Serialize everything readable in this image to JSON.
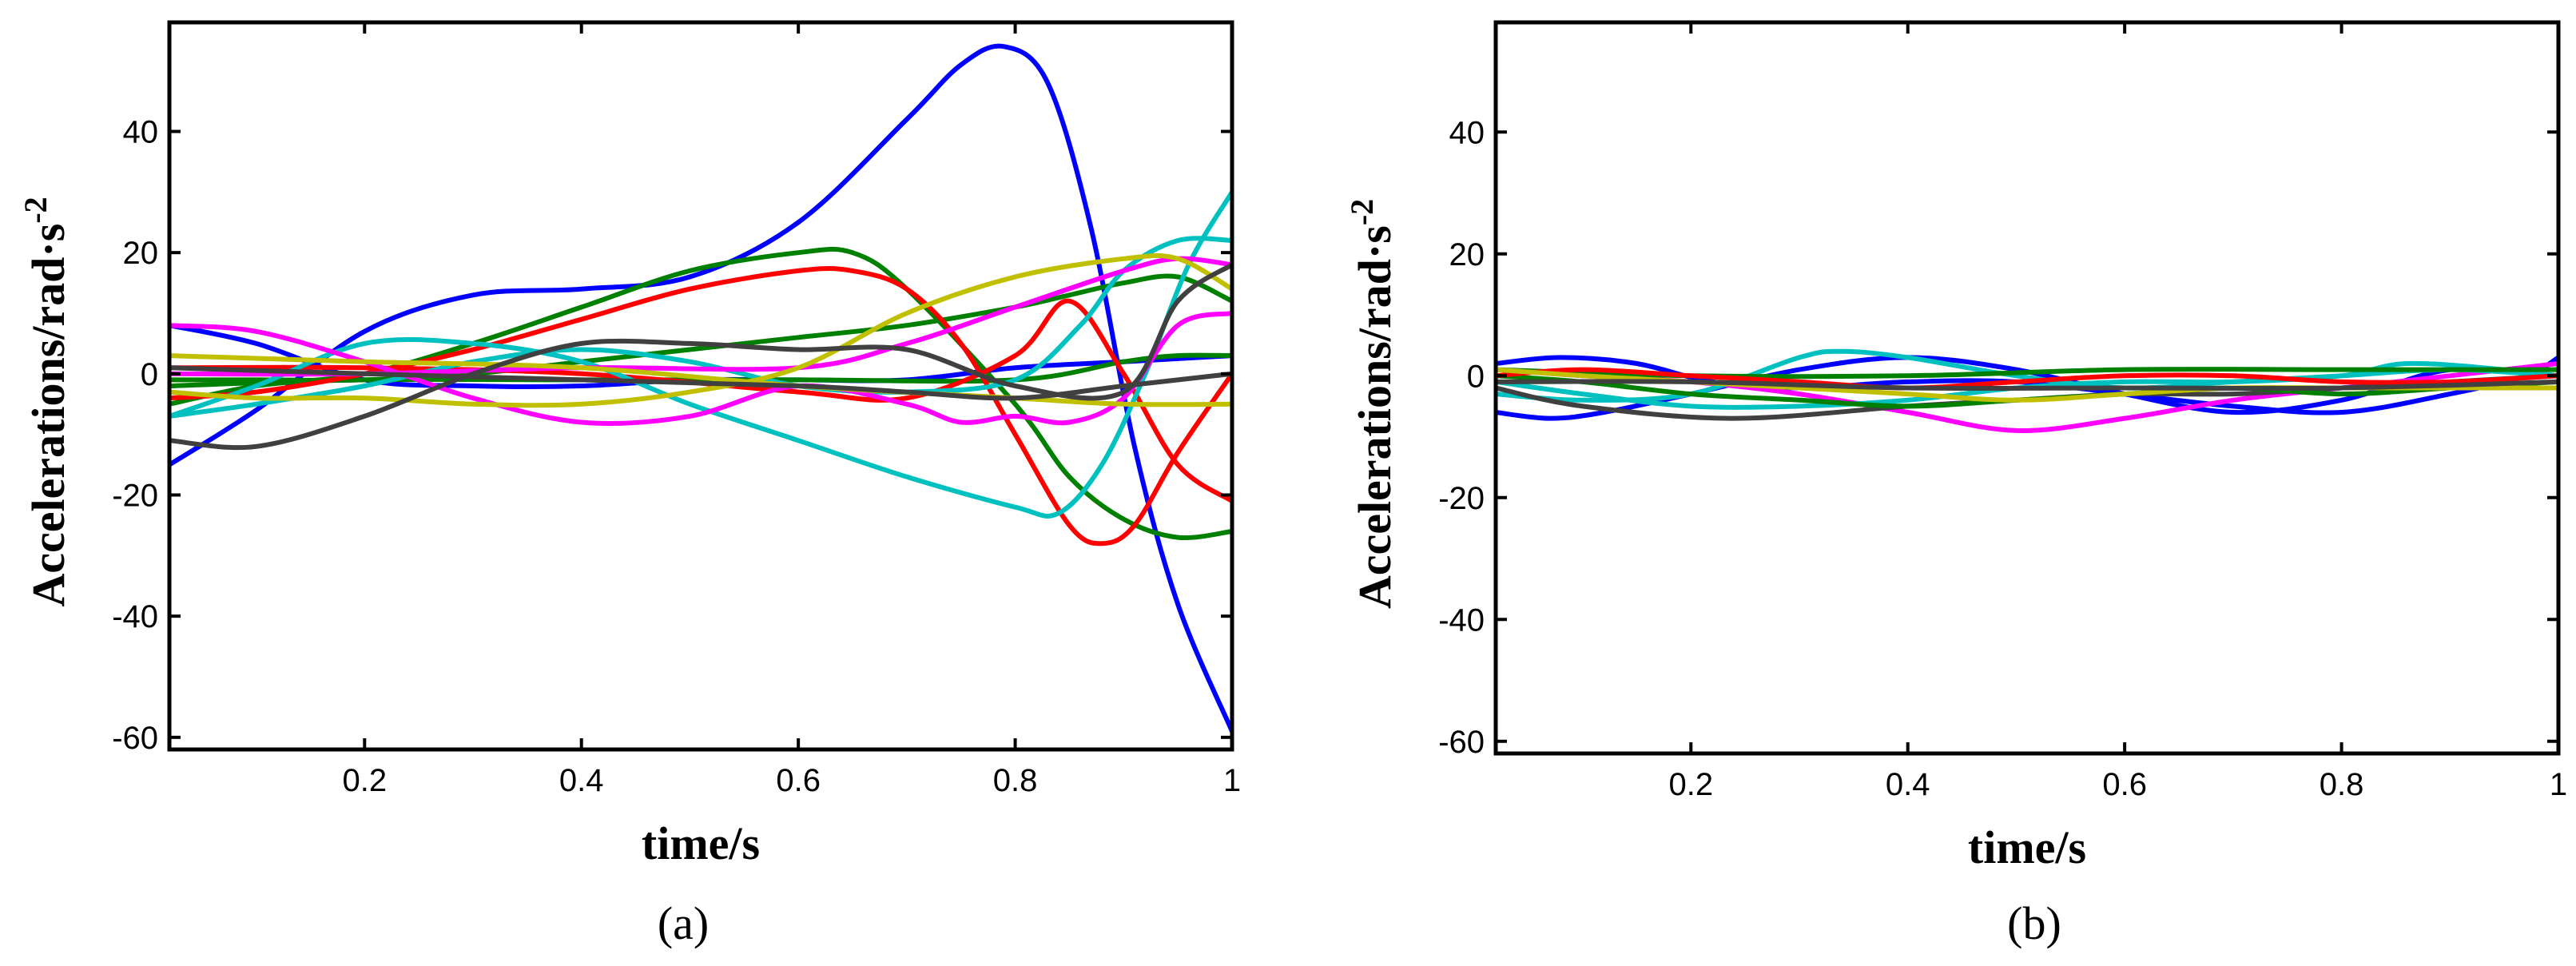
{
  "chart_data": [
    {
      "type": "line",
      "caption": "(a)",
      "xlabel": "time/s",
      "ylabel": "Accelerations/rad·s",
      "ylabel_superscript": "-2",
      "xlim": [
        0.02,
        1.0
      ],
      "ylim": [
        -62,
        58
      ],
      "xticks": [
        0.2,
        0.4,
        0.6,
        0.8,
        1.0
      ],
      "xtick_labels": [
        "0.2",
        "0.4",
        "0.6",
        "0.8",
        "1"
      ],
      "yticks": [
        -60,
        -40,
        -20,
        0,
        20,
        40
      ],
      "ytick_labels": [
        "-60",
        "-40",
        "-20",
        "0",
        "20",
        "40"
      ],
      "series": [
        {
          "name": "blue-1",
          "color": "#0000ff",
          "x": [
            0.02,
            0.1,
            0.2,
            0.3,
            0.4,
            0.5,
            0.6,
            0.7,
            0.75,
            0.79,
            0.83,
            0.87,
            0.91,
            0.95,
            1.0
          ],
          "y": [
            -15,
            -6,
            7,
            13,
            14,
            16,
            25,
            42,
            51,
            54,
            48,
            24,
            -12,
            -38,
            -59
          ]
        },
        {
          "name": "blue-2",
          "color": "#0000ff",
          "x": [
            0.02,
            0.1,
            0.2,
            0.3,
            0.4,
            0.5,
            0.6,
            0.7,
            0.8,
            0.9,
            1.0
          ],
          "y": [
            8,
            5,
            -1,
            -2,
            -2,
            -1,
            -1,
            -1,
            1,
            2,
            3
          ]
        },
        {
          "name": "green-1",
          "color": "#008000",
          "x": [
            0.02,
            0.1,
            0.2,
            0.3,
            0.4,
            0.5,
            0.6,
            0.65,
            0.7,
            0.8,
            0.85,
            0.9,
            0.95,
            1.0
          ],
          "y": [
            -5,
            -2,
            0,
            5,
            11,
            17,
            20,
            20,
            14,
            -5,
            -17,
            -24,
            -27,
            -26
          ]
        },
        {
          "name": "green-2",
          "color": "#008000",
          "x": [
            0.02,
            0.2,
            0.4,
            0.6,
            0.8,
            0.9,
            0.95,
            1.0
          ],
          "y": [
            -2,
            -1,
            -1,
            -1,
            -1,
            2,
            3,
            3
          ]
        },
        {
          "name": "green-3",
          "color": "#008000",
          "x": [
            0.02,
            0.1,
            0.2,
            0.3,
            0.4,
            0.5,
            0.6,
            0.7,
            0.8,
            0.85,
            0.9,
            0.95,
            1.0
          ],
          "y": [
            -1,
            -1,
            -1,
            0,
            2,
            4,
            6,
            8,
            11,
            13,
            15,
            16,
            12
          ]
        },
        {
          "name": "red-1",
          "color": "#ff0000",
          "x": [
            0.02,
            0.1,
            0.2,
            0.3,
            0.4,
            0.5,
            0.6,
            0.65,
            0.7,
            0.75,
            0.8,
            0.85,
            0.88,
            0.91,
            0.95,
            1.0
          ],
          "y": [
            -4,
            -3,
            0,
            4,
            9,
            14,
            17,
            17,
            14,
            5,
            -10,
            -25,
            -28,
            -25,
            -13,
            0
          ]
        },
        {
          "name": "red-2",
          "color": "#ff0000",
          "x": [
            0.02,
            0.2,
            0.4,
            0.6,
            0.7,
            0.8,
            0.85,
            0.9,
            0.95,
            1.0
          ],
          "y": [
            1,
            1,
            0,
            -3,
            -4,
            3,
            12,
            0,
            -15,
            -21
          ]
        },
        {
          "name": "cyan-1",
          "color": "#00c0c0",
          "x": [
            0.02,
            0.1,
            0.2,
            0.3,
            0.4,
            0.5,
            0.6,
            0.7,
            0.8,
            0.84,
            0.88,
            0.92,
            0.96,
            1.0
          ],
          "y": [
            -7,
            -2,
            5,
            5,
            2,
            -5,
            -11,
            -17,
            -22,
            -23,
            -15,
            0,
            18,
            30
          ]
        },
        {
          "name": "cyan-2",
          "color": "#00c0c0",
          "x": [
            0.02,
            0.1,
            0.2,
            0.3,
            0.4,
            0.5,
            0.6,
            0.7,
            0.8,
            0.86,
            0.9,
            0.95,
            1.0
          ],
          "y": [
            -7,
            -5,
            -2,
            2,
            4,
            2,
            -2,
            -3,
            -1,
            8,
            17,
            22,
            22
          ]
        },
        {
          "name": "magenta",
          "color": "#ff00ff",
          "x": [
            0.02,
            0.1,
            0.2,
            0.3,
            0.4,
            0.5,
            0.6,
            0.7,
            0.75,
            0.8,
            0.85,
            0.9,
            0.95,
            1.0
          ],
          "y": [
            8,
            7,
            2,
            -4,
            -8,
            -7,
            -2,
            -5,
            -8,
            -7,
            -8,
            -4,
            8,
            10
          ]
        },
        {
          "name": "magenta-2",
          "color": "#ff00ff",
          "x": [
            0.02,
            0.2,
            0.4,
            0.6,
            0.7,
            0.8,
            0.9,
            0.95,
            1.0
          ],
          "y": [
            0,
            0,
            1,
            1,
            5,
            11,
            17,
            19,
            18
          ]
        },
        {
          "name": "yellow-1",
          "color": "#c0c000",
          "x": [
            0.02,
            0.1,
            0.2,
            0.3,
            0.4,
            0.5,
            0.6,
            0.7,
            0.8,
            0.9,
            0.95,
            1.0
          ],
          "y": [
            -3,
            -4,
            -4,
            -5,
            -5,
            -3,
            1,
            10,
            16,
            19,
            19,
            14
          ]
        },
        {
          "name": "yellow-2",
          "color": "#c0c000",
          "x": [
            0.02,
            0.2,
            0.4,
            0.6,
            0.8,
            0.9,
            1.0
          ],
          "y": [
            3,
            2,
            1,
            -2,
            -4,
            -5,
            -5
          ]
        },
        {
          "name": "dark-gray",
          "color": "#404040",
          "x": [
            0.02,
            0.1,
            0.2,
            0.3,
            0.4,
            0.5,
            0.6,
            0.7,
            0.8,
            0.9,
            0.95,
            1.0
          ],
          "y": [
            -11,
            -12,
            -7,
            0,
            5,
            5,
            4,
            4,
            -2,
            -3,
            12,
            18
          ]
        },
        {
          "name": "dark-gray-2",
          "color": "#404040",
          "x": [
            0.02,
            0.2,
            0.4,
            0.6,
            0.7,
            0.8,
            0.9,
            1.0
          ],
          "y": [
            1,
            0,
            -1,
            -2,
            -3,
            -4,
            -2,
            0
          ]
        }
      ]
    },
    {
      "type": "line",
      "caption": "(b)",
      "xlabel": "time/s",
      "ylabel": "Accelerations/rad·s",
      "ylabel_superscript": "-2",
      "xlim": [
        0.02,
        1.0
      ],
      "ylim": [
        -62,
        58
      ],
      "xticks": [
        0.2,
        0.4,
        0.6,
        0.8,
        1.0
      ],
      "xtick_labels": [
        "0.2",
        "0.4",
        "0.6",
        "0.8",
        "1"
      ],
      "yticks": [
        -60,
        -40,
        -20,
        0,
        20,
        40
      ],
      "ytick_labels": [
        "-60",
        "-40",
        "-20",
        "0",
        "20",
        "40"
      ],
      "series": [
        {
          "name": "blue-1",
          "color": "#0000ff",
          "x": [
            0.02,
            0.08,
            0.15,
            0.22,
            0.3,
            0.4,
            0.5,
            0.6,
            0.7,
            0.8,
            0.9,
            0.97,
            1.0
          ],
          "y": [
            2,
            3,
            2,
            -1,
            -2,
            -1,
            -1,
            -3,
            -5,
            -6,
            -3,
            0,
            3
          ]
        },
        {
          "name": "blue-2",
          "color": "#0000ff",
          "x": [
            0.02,
            0.07,
            0.12,
            0.2,
            0.3,
            0.4,
            0.5,
            0.6,
            0.7,
            0.8,
            0.9,
            1.0
          ],
          "y": [
            -6,
            -7,
            -6,
            -3,
            1,
            3,
            1,
            -3,
            -6,
            -4,
            1,
            0
          ]
        },
        {
          "name": "magenta",
          "color": "#ff00ff",
          "x": [
            0.02,
            0.1,
            0.2,
            0.3,
            0.4,
            0.5,
            0.6,
            0.7,
            0.8,
            0.9,
            1.0
          ],
          "y": [
            1,
            0,
            -1,
            -3,
            -6,
            -9,
            -7,
            -4,
            -2,
            0,
            2
          ]
        },
        {
          "name": "cyan-1",
          "color": "#00c0c0",
          "x": [
            0.02,
            0.1,
            0.2,
            0.3,
            0.34,
            0.4,
            0.5,
            0.6,
            0.7,
            0.8,
            0.9,
            1.0
          ],
          "y": [
            -3,
            -4,
            -3,
            3,
            4,
            3,
            0,
            -2,
            -1,
            0,
            1,
            0
          ]
        },
        {
          "name": "cyan-2",
          "color": "#00c0c0",
          "x": [
            0.02,
            0.1,
            0.2,
            0.3,
            0.4,
            0.5,
            0.6,
            0.7,
            0.8,
            0.86,
            0.95,
            1.0
          ],
          "y": [
            -1,
            -3,
            -5,
            -5,
            -4,
            -2,
            -1,
            -1,
            0,
            2,
            1,
            0
          ]
        },
        {
          "name": "dark-gray",
          "color": "#404040",
          "x": [
            0.02,
            0.1,
            0.24,
            0.4,
            0.5,
            0.6,
            0.7,
            0.8,
            0.9,
            1.0
          ],
          "y": [
            -2,
            -5,
            -7,
            -5,
            -4,
            -3,
            -3,
            -2,
            -1,
            0
          ]
        },
        {
          "name": "green-1",
          "color": "#008000",
          "x": [
            0.02,
            0.1,
            0.2,
            0.3,
            0.4,
            0.5,
            0.6,
            0.7,
            0.8,
            0.9,
            1.0
          ],
          "y": [
            0,
            -1,
            -3,
            -4,
            -5,
            -4,
            -3,
            -2,
            -3,
            -2,
            -1
          ]
        },
        {
          "name": "green-2",
          "color": "#008000",
          "x": [
            0.02,
            0.2,
            0.4,
            0.6,
            0.8,
            1.0
          ],
          "y": [
            1,
            0,
            0,
            1,
            1,
            1
          ]
        },
        {
          "name": "red",
          "color": "#ff0000",
          "x": [
            0.02,
            0.1,
            0.2,
            0.3,
            0.4,
            0.5,
            0.6,
            0.7,
            0.8,
            0.9,
            1.0
          ],
          "y": [
            0,
            1,
            0,
            -1,
            -2,
            -1,
            0,
            0,
            -1,
            -1,
            0
          ]
        },
        {
          "name": "yellow",
          "color": "#c0c000",
          "x": [
            0.02,
            0.1,
            0.2,
            0.3,
            0.4,
            0.5,
            0.6,
            0.7,
            0.8,
            0.9,
            1.0
          ],
          "y": [
            1,
            0,
            -1,
            -2,
            -3,
            -4,
            -3,
            -2,
            -2,
            -2,
            -2
          ]
        },
        {
          "name": "dark-gray-2",
          "color": "#404040",
          "x": [
            0.02,
            0.2,
            0.4,
            0.6,
            0.8,
            1.0
          ],
          "y": [
            -1,
            -1,
            -2,
            -2,
            -2,
            -1
          ]
        }
      ]
    }
  ]
}
